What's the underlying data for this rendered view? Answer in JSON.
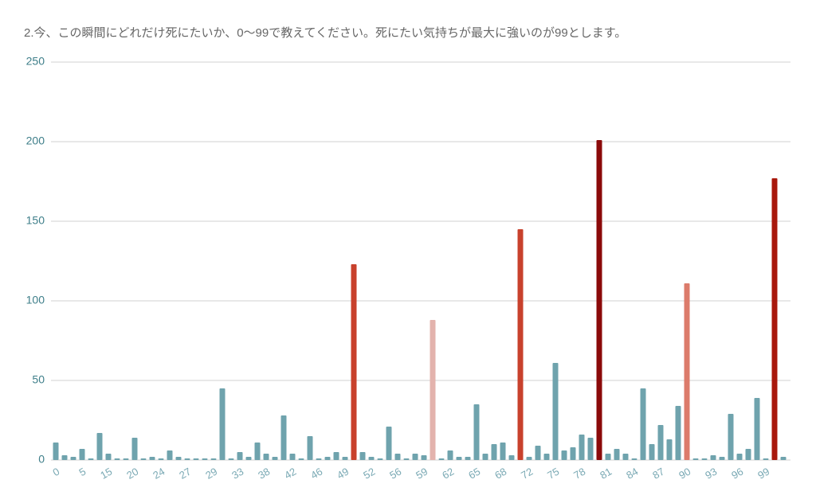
{
  "chart_data": {
    "type": "bar",
    "title": "2.今、この瞬間にどれだけ死にたいか、0〜99で教えてください。死にたい気持ちが最大に強いのが99とします。",
    "categories": [
      "0",
      null,
      null,
      "5",
      null,
      null,
      "15",
      null,
      null,
      "20",
      null,
      null,
      "24",
      null,
      null,
      "27",
      null,
      null,
      "29",
      null,
      null,
      "33",
      null,
      null,
      "38",
      null,
      null,
      "42",
      null,
      null,
      "46",
      null,
      null,
      "49",
      null,
      null,
      "52",
      null,
      null,
      "56",
      null,
      null,
      "59",
      null,
      null,
      "62",
      null,
      null,
      "65",
      null,
      null,
      "68",
      null,
      null,
      "72",
      null,
      null,
      "75",
      null,
      null,
      "78",
      null,
      null,
      "81",
      null,
      null,
      "84",
      null,
      null,
      "87",
      null,
      null,
      "90",
      null,
      null,
      "93",
      null,
      null,
      "96",
      null,
      null,
      "99",
      null,
      null
    ],
    "values": [
      11,
      3,
      2,
      7,
      1,
      17,
      4,
      1,
      1,
      14,
      1,
      2,
      1,
      6,
      2,
      1,
      1,
      1,
      1,
      45,
      1,
      5,
      2,
      11,
      4,
      2,
      28,
      4,
      1,
      15,
      1,
      2,
      5,
      2,
      123,
      5,
      2,
      1,
      21,
      4,
      1,
      4,
      3,
      88,
      1,
      6,
      2,
      2,
      35,
      4,
      10,
      11,
      3,
      145,
      2,
      9,
      4,
      61,
      6,
      8,
      16,
      14,
      201,
      4,
      7,
      4,
      1,
      45,
      10,
      22,
      13,
      34,
      111,
      1,
      1,
      3,
      2,
      29,
      4,
      7,
      39,
      1,
      177,
      2
    ],
    "color": "#6fa3ad",
    "colors": {
      "34": "#c8412c",
      "43": "#e3b3ad",
      "53": "#c8412c",
      "62": "#8b0a0a",
      "72": "#dc7b6b",
      "82": "#a8180c"
    },
    "ylim": [
      0,
      250
    ],
    "yticks": [
      0,
      50,
      100,
      150,
      200,
      250
    ],
    "grid": true
  }
}
